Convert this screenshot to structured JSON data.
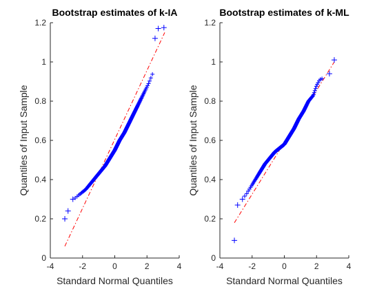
{
  "chart_data": [
    {
      "type": "scatter",
      "title": "Bootstrap estimates of k-IA",
      "xlabel": "Standard Normal Quantiles",
      "ylabel": "Quantiles of Input Sample",
      "xlim": [
        -4,
        4
      ],
      "ylim": [
        0,
        1.2
      ],
      "xticks": [
        "-4",
        "-2",
        "0",
        "2",
        "4"
      ],
      "yticks": [
        "0",
        "0.2",
        "0.4",
        "0.6",
        "0.8",
        "1",
        "1.2"
      ],
      "grid": false,
      "marker": "+",
      "colors": {
        "markers": "#0000ff",
        "reference_line": "#ff0000"
      },
      "reference_line": {
        "style": "dash-dot",
        "x": [
          -3.1,
          3.1
        ],
        "y": [
          0.06,
          1.15
        ]
      },
      "curve_profile": {
        "x": [
          -3.1,
          -2.9,
          -2.7,
          -2.4,
          -2.1,
          -1.8,
          -1.5,
          -1.2,
          -0.9,
          -0.6,
          -0.3,
          0.0,
          0.3,
          0.6,
          0.9,
          1.2,
          1.5,
          1.8,
          2.1,
          2.4,
          2.7,
          3.1
        ],
        "y": [
          0.2,
          0.24,
          0.29,
          0.31,
          0.33,
          0.35,
          0.38,
          0.41,
          0.44,
          0.47,
          0.51,
          0.55,
          0.6,
          0.64,
          0.69,
          0.74,
          0.79,
          0.84,
          0.89,
          0.95,
          1.12,
          1.17
        ]
      },
      "outliers": [
        {
          "x": -3.1,
          "y": 0.2
        },
        {
          "x": -2.9,
          "y": 0.24
        },
        {
          "x": -2.6,
          "y": 0.3
        },
        {
          "x": 2.5,
          "y": 1.12
        },
        {
          "x": 2.7,
          "y": 1.17
        },
        {
          "x": 3.05,
          "y": 1.175
        }
      ]
    },
    {
      "type": "scatter",
      "title": "Bootstrap estimates of k-ML",
      "xlabel": "Standard Normal Quantiles",
      "ylabel": "Quantiles of Input Sample",
      "xlim": [
        -4,
        4
      ],
      "ylim": [
        0,
        1.2
      ],
      "xticks": [
        "-4",
        "-2",
        "0",
        "2",
        "4"
      ],
      "yticks": [
        "0",
        "0.2",
        "0.4",
        "0.6",
        "0.8",
        "1",
        "1.2"
      ],
      "grid": false,
      "marker": "+",
      "colors": {
        "markers": "#0000ff",
        "reference_line": "#ff0000"
      },
      "reference_line": {
        "style": "dash-dot",
        "x": [
          -3.1,
          3.1
        ],
        "y": [
          0.18,
          1.0
        ]
      },
      "curve_profile": {
        "x": [
          -3.1,
          -2.9,
          -2.7,
          -2.4,
          -2.1,
          -1.8,
          -1.5,
          -1.2,
          -0.9,
          -0.6,
          -0.3,
          0.0,
          0.3,
          0.6,
          0.9,
          1.2,
          1.5,
          1.8,
          2.0,
          2.2,
          2.5,
          2.8,
          3.1
        ],
        "y": [
          0.09,
          0.27,
          0.3,
          0.32,
          0.36,
          0.4,
          0.44,
          0.48,
          0.51,
          0.54,
          0.56,
          0.58,
          0.62,
          0.66,
          0.71,
          0.75,
          0.8,
          0.83,
          0.88,
          0.91,
          0.92,
          0.94,
          1.01
        ]
      },
      "outliers": [
        {
          "x": -3.1,
          "y": 0.09
        },
        {
          "x": -2.9,
          "y": 0.27
        },
        {
          "x": -2.6,
          "y": 0.3
        },
        {
          "x": 2.8,
          "y": 0.94
        },
        {
          "x": 3.1,
          "y": 1.01
        }
      ]
    }
  ]
}
